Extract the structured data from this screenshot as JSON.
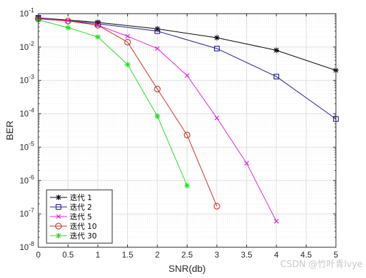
{
  "chart_data": {
    "type": "line",
    "title": "",
    "xlabel": "SNR(db)",
    "ylabel": "BER",
    "yscale": "log",
    "xlim": [
      0,
      5
    ],
    "ylim": [
      1e-08,
      0.1
    ],
    "xticks": [
      "0",
      "0.5",
      "1",
      "1.5",
      "2",
      "2.5",
      "3",
      "3.5",
      "4",
      "4.5",
      "5"
    ],
    "yticks": [
      {
        "base": "10",
        "exp": "-8"
      },
      {
        "base": "10",
        "exp": "-7"
      },
      {
        "base": "10",
        "exp": "-6"
      },
      {
        "base": "10",
        "exp": "-5"
      },
      {
        "base": "10",
        "exp": "-4"
      },
      {
        "base": "10",
        "exp": "-3"
      },
      {
        "base": "10",
        "exp": "-2"
      },
      {
        "base": "10",
        "exp": "-1"
      }
    ],
    "grid": true,
    "legend_position": "bottom-left",
    "series": [
      {
        "name": "迭代 1",
        "color": "#000000",
        "marker": "star",
        "x": [
          0,
          1,
          2,
          3,
          4,
          5
        ],
        "y": [
          0.075,
          0.055,
          0.035,
          0.019,
          0.008,
          0.002
        ]
      },
      {
        "name": "迭代 2",
        "color": "#1a1a8c",
        "marker": "square",
        "x": [
          0,
          1,
          2,
          3,
          4,
          5
        ],
        "y": [
          0.075,
          0.05,
          0.03,
          0.009,
          0.0013,
          7e-05
        ]
      },
      {
        "name": "迭代 5",
        "color": "#e020e0",
        "marker": "x",
        "x": [
          0,
          0.5,
          1,
          1.5,
          2,
          2.5,
          3,
          3.5,
          4
        ],
        "y": [
          0.072,
          0.062,
          0.045,
          0.021,
          0.009,
          0.0014,
          7.5e-05,
          3.3e-06,
          6e-08
        ]
      },
      {
        "name": "迭代 10",
        "color": "#cc2a1e",
        "marker": "circle",
        "x": [
          0,
          0.5,
          1,
          1.5,
          2,
          2.5,
          3
        ],
        "y": [
          0.07,
          0.06,
          0.045,
          0.014,
          0.00055,
          2.3e-05,
          1.7e-07
        ]
      },
      {
        "name": "迭代 30",
        "color": "#22dd22",
        "marker": "star",
        "x": [
          0,
          0.5,
          1,
          1.5,
          2,
          2.5
        ],
        "y": [
          0.065,
          0.038,
          0.02,
          0.003,
          8.5e-05,
          7e-07
        ]
      }
    ]
  },
  "watermark": "CSDN @竹叶青lvye"
}
